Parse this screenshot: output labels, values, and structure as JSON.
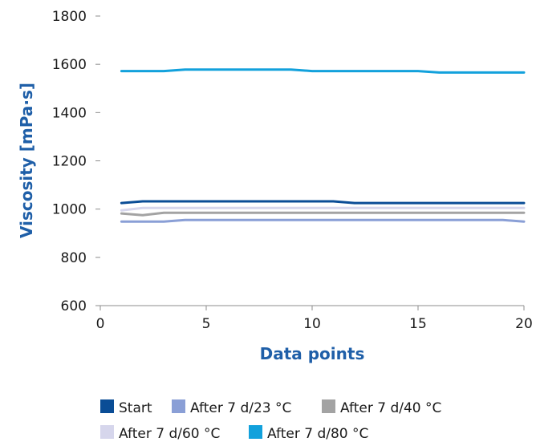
{
  "chart_data": {
    "type": "line",
    "title": "",
    "xlabel": "Data points",
    "ylabel": "Viscosity [mPa·s]",
    "xlim": [
      0,
      20
    ],
    "ylim": [
      600,
      1800
    ],
    "xticks": [
      0,
      5,
      10,
      15,
      20
    ],
    "yticks": [
      600,
      800,
      1000,
      1200,
      1400,
      1600,
      1800
    ],
    "grid": false,
    "legend_position": "bottom",
    "x": [
      1,
      2,
      3,
      4,
      5,
      6,
      7,
      8,
      9,
      10,
      11,
      12,
      13,
      14,
      15,
      16,
      17,
      18,
      19,
      20
    ],
    "series": [
      {
        "name": "Start",
        "color": "#0a4d96",
        "values": [
          1025,
          1032,
          1032,
          1032,
          1032,
          1032,
          1032,
          1032,
          1032,
          1032,
          1032,
          1025,
          1025,
          1025,
          1025,
          1025,
          1025,
          1025,
          1025,
          1025
        ]
      },
      {
        "name": "After 7 d/23 °C",
        "color": "#8a9fd6",
        "values": [
          948,
          948,
          948,
          955,
          955,
          955,
          955,
          955,
          955,
          955,
          955,
          955,
          955,
          955,
          955,
          955,
          955,
          955,
          955,
          948
        ]
      },
      {
        "name": "After 7 d/40 °C",
        "color": "#a3a3a3",
        "values": [
          982,
          975,
          985,
          985,
          985,
          985,
          985,
          985,
          985,
          985,
          985,
          985,
          985,
          985,
          985,
          985,
          985,
          985,
          985,
          985
        ]
      },
      {
        "name": "After 7 d/60 °C",
        "color": "#d6d6ec",
        "values": [
          995,
          1005,
          1005,
          1005,
          1005,
          1005,
          1005,
          1005,
          1005,
          1005,
          1005,
          1005,
          1005,
          1005,
          1005,
          1005,
          1005,
          1005,
          1005,
          1005
        ]
      },
      {
        "name": "After 7 d/80 °C",
        "color": "#12a1dc",
        "values": [
          1572,
          1572,
          1572,
          1578,
          1578,
          1578,
          1578,
          1578,
          1578,
          1572,
          1572,
          1572,
          1572,
          1572,
          1572,
          1566,
          1566,
          1566,
          1566,
          1566
        ]
      }
    ]
  }
}
